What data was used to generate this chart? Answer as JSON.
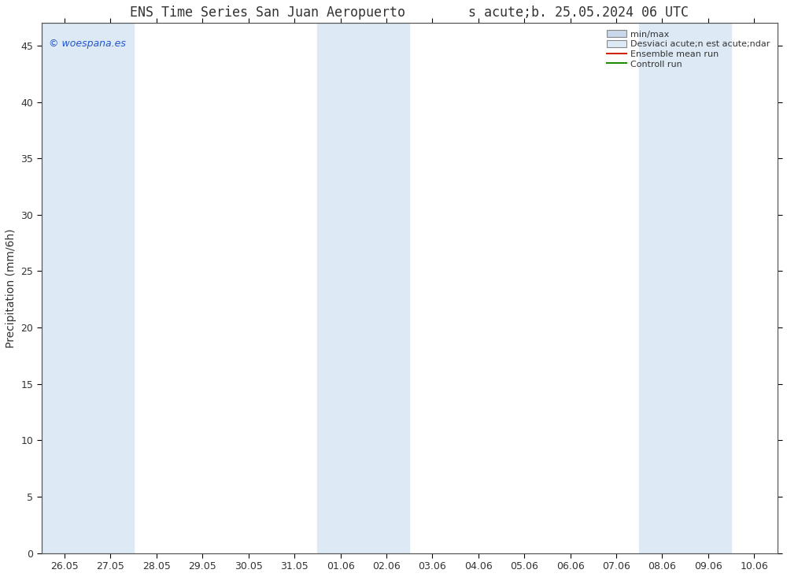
{
  "title": "ENS Time Series San Juan Aeropuerto        s acute;b. 25.05.2024 06 UTC",
  "ylabel": "Precipitation (mm/6h)",
  "background_color": "#ffffff",
  "plot_bg_color": "#ffffff",
  "ylim": [
    0,
    47
  ],
  "yticks": [
    0,
    5,
    10,
    15,
    20,
    25,
    30,
    35,
    40,
    45
  ],
  "x_labels": [
    "26.05",
    "27.05",
    "28.05",
    "29.05",
    "30.05",
    "31.05",
    "01.06",
    "02.06",
    "03.06",
    "04.06",
    "05.06",
    "06.06",
    "07.06",
    "08.06",
    "09.06",
    "10.06"
  ],
  "shaded_bands": [
    0,
    1,
    6,
    7,
    13,
    14
  ],
  "shade_color": "#ddeaf5",
  "watermark": "© woespana.es",
  "grid_color": "#cccccc",
  "tick_label_color": "#333333",
  "title_fontsize": 12,
  "axis_label_fontsize": 10,
  "tick_fontsize": 9,
  "spine_color": "#555555",
  "legend_minmax_color": "#c8d8ea",
  "legend_desv_color": "#ddeaf5",
  "legend_ens_color": "#cc2200",
  "legend_ctrl_color": "#228800"
}
